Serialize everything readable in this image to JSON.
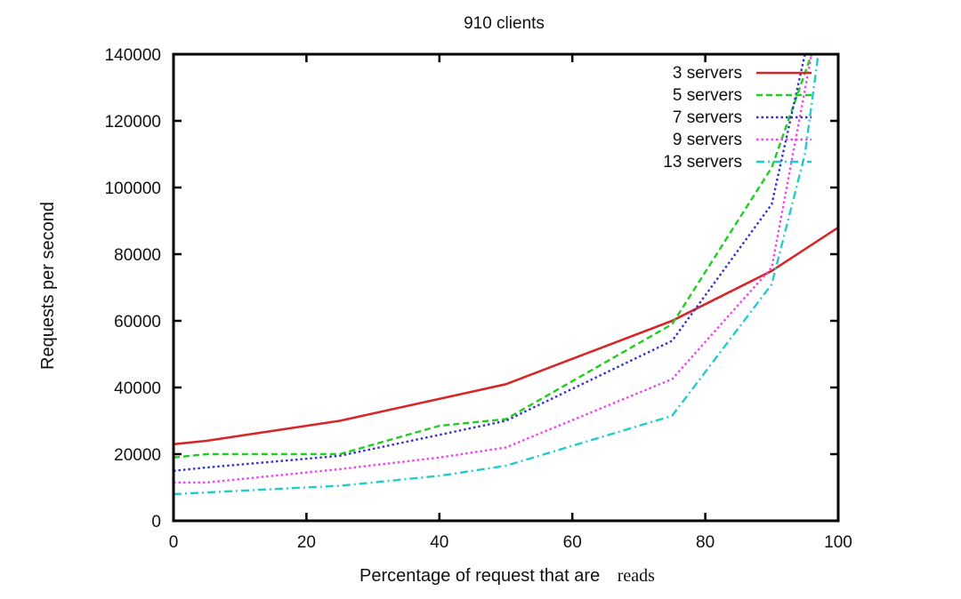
{
  "chart_data": {
    "type": "line",
    "title": "910 clients",
    "xlabel": "Percentage of request that are",
    "xlabel_suffix": "reads",
    "ylabel": "Requests per second",
    "xlim": [
      0,
      100
    ],
    "ylim": [
      0,
      140000
    ],
    "x_ticks": [
      0,
      20,
      40,
      60,
      80,
      100
    ],
    "y_ticks": [
      0,
      20000,
      40000,
      60000,
      80000,
      100000,
      120000,
      140000
    ],
    "grid": false,
    "legend_position": "top-right",
    "series": [
      {
        "name": "3 servers",
        "color": "#d62728",
        "dash": "solid",
        "points": [
          [
            0,
            23000
          ],
          [
            5,
            24000
          ],
          [
            25,
            30000
          ],
          [
            50,
            41000
          ],
          [
            75,
            60000
          ],
          [
            90,
            75000
          ],
          [
            100,
            88000
          ]
        ]
      },
      {
        "name": "5 servers",
        "color": "#22cc22",
        "dash": "dashed",
        "points": [
          [
            0,
            19000
          ],
          [
            5,
            20000
          ],
          [
            25,
            20000
          ],
          [
            40,
            28500
          ],
          [
            50,
            30500
          ],
          [
            75,
            59000
          ],
          [
            90,
            106000
          ],
          [
            96,
            140000
          ]
        ]
      },
      {
        "name": "7 servers",
        "color": "#3333cc",
        "dash": "dotted",
        "points": [
          [
            0,
            15000
          ],
          [
            5,
            16000
          ],
          [
            25,
            19500
          ],
          [
            50,
            30000
          ],
          [
            75,
            54000
          ],
          [
            90,
            95000
          ],
          [
            95,
            140000
          ]
        ]
      },
      {
        "name": "9 servers",
        "color": "#ee44ee",
        "dash": "dotted",
        "points": [
          [
            0,
            11500
          ],
          [
            5,
            11500
          ],
          [
            25,
            15500
          ],
          [
            40,
            19000
          ],
          [
            50,
            22000
          ],
          [
            75,
            42500
          ],
          [
            90,
            76000
          ],
          [
            96,
            140000
          ]
        ]
      },
      {
        "name": "13 servers",
        "color": "#22cccc",
        "dash": "dashdot",
        "points": [
          [
            0,
            8000
          ],
          [
            5,
            8500
          ],
          [
            25,
            10500
          ],
          [
            40,
            13500
          ],
          [
            50,
            16500
          ],
          [
            75,
            31500
          ],
          [
            90,
            71000
          ],
          [
            95,
            110000
          ],
          [
            97,
            140000
          ]
        ]
      }
    ]
  }
}
